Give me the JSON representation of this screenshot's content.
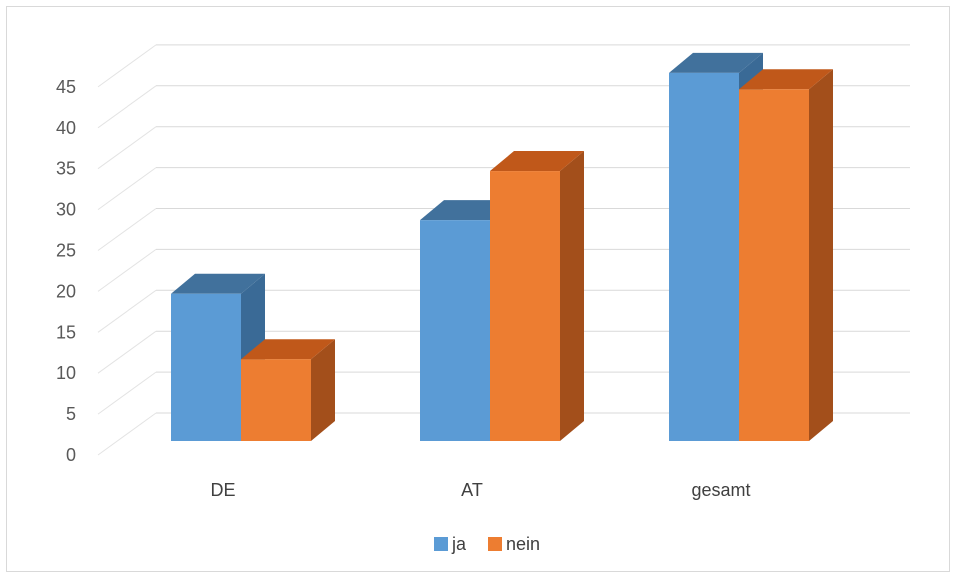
{
  "chart_data": {
    "type": "bar",
    "categories": [
      "DE",
      "AT",
      "gesamt"
    ],
    "series": [
      {
        "name": "ja",
        "values": [
          18,
          27,
          45
        ],
        "color": "#5b9bd5",
        "top_color": "#41719c",
        "side_color": "#3a6a96"
      },
      {
        "name": "nein",
        "values": [
          10,
          33,
          43
        ],
        "color": "#ed7d31",
        "top_color": "#c0581a",
        "side_color": "#a34f1b"
      }
    ],
    "yticks": [
      "0",
      "5",
      "10",
      "15",
      "20",
      "25",
      "30",
      "35",
      "40",
      "45"
    ],
    "ylim": [
      0,
      45
    ],
    "grid": true,
    "legend": "bottom",
    "style": "3d-column",
    "title": "",
    "xlabel": "",
    "ylabel": ""
  }
}
